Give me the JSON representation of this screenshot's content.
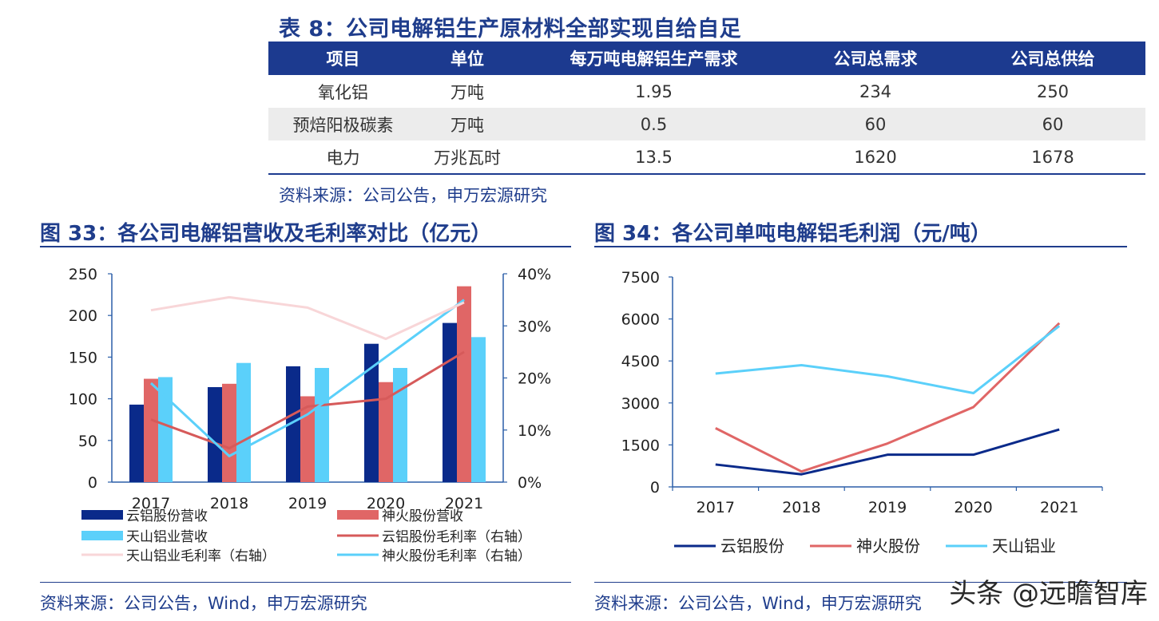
{
  "table8": {
    "title": "表 8：公司电解铝生产原材料全部实现自给自足",
    "headers": [
      "项目",
      "单位",
      "每万吨电解铝生产需求",
      "公司总需求",
      "公司总供给"
    ],
    "rows": [
      [
        "氧化铝",
        "万吨",
        "1.95",
        "234",
        "250"
      ],
      [
        "预焙阳极碳素",
        "万吨",
        "0.5",
        "60",
        "60"
      ],
      [
        "电力",
        "万兆瓦时",
        "13.5",
        "1620",
        "1678"
      ]
    ],
    "source": "资料来源：公司公告，申万宏源研究"
  },
  "figure33": {
    "title": "图 33：各公司电解铝营收及毛利率对比（亿元）",
    "source": "资料来源：公司公告，Wind，申万宏源研究"
  },
  "figure34": {
    "title": "图 34：各公司单吨电解铝毛利润（元/吨）",
    "source": "资料来源：公司公告，Wind，申万宏源研究"
  },
  "watermark": "头条 @远瞻智库",
  "chart_data": [
    {
      "type": "bar",
      "categories": [
        "2017",
        "2018",
        "2019",
        "2020",
        "2021"
      ],
      "series": [
        {
          "name": "云铝股份营收",
          "kind": "bar",
          "color": "#0a2a8a",
          "values": [
            93,
            114,
            139,
            166,
            191
          ]
        },
        {
          "name": "神火股份营收",
          "kind": "bar",
          "color": "#e06666",
          "values": [
            124,
            118,
            103,
            120,
            235
          ]
        },
        {
          "name": "天山铝业营收",
          "kind": "bar",
          "color": "#5bd0fa",
          "values": [
            126,
            143,
            137,
            137,
            174
          ]
        },
        {
          "name": "云铝股份毛利率（右轴）",
          "kind": "line",
          "axis": "right",
          "color": "#d65a5a",
          "values": [
            0.12,
            0.065,
            0.145,
            0.16,
            0.25
          ]
        },
        {
          "name": "神火股份毛利率（右轴）",
          "kind": "line",
          "axis": "right",
          "color": "#5bd0fa",
          "values": [
            0.19,
            0.05,
            0.13,
            0.24,
            0.35
          ]
        },
        {
          "name": "天山铝业毛利率（右轴）",
          "kind": "line",
          "axis": "right",
          "color": "#f8d6d8",
          "values": [
            0.33,
            0.355,
            0.335,
            0.275,
            0.345
          ]
        }
      ],
      "ylim": [
        0,
        250
      ],
      "yticks": [
        "0",
        "50",
        "100",
        "150",
        "200",
        "250"
      ],
      "y2lim": [
        0,
        0.4
      ],
      "y2ticks": [
        "0%",
        "10%",
        "20%",
        "30%",
        "40%"
      ],
      "legend": "bottom"
    },
    {
      "type": "line",
      "categories": [
        "2017",
        "2018",
        "2019",
        "2020",
        "2021"
      ],
      "series": [
        {
          "name": "云铝股份",
          "color": "#0a2a8a",
          "values": [
            800,
            450,
            1150,
            1150,
            2050
          ]
        },
        {
          "name": "神火股份",
          "color": "#e06666",
          "values": [
            2100,
            550,
            1550,
            2850,
            5850
          ]
        },
        {
          "name": "天山铝业",
          "color": "#5bd0fa",
          "values": [
            4050,
            4350,
            3950,
            3350,
            5750
          ]
        }
      ],
      "ylim": [
        0,
        7500
      ],
      "yticks": [
        "0",
        "1500",
        "3000",
        "4500",
        "6000",
        "7500"
      ],
      "legend": "bottom"
    }
  ]
}
